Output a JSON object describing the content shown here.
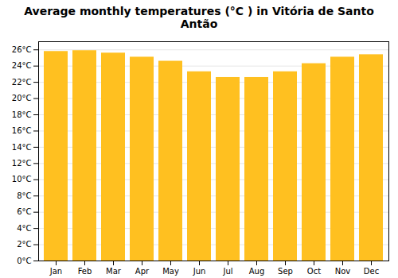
{
  "chart_data": {
    "type": "bar",
    "title": "Average monthly temperatures (°C ) in Vitória de Santo Antão",
    "categories": [
      "Jan",
      "Feb",
      "Mar",
      "Apr",
      "May",
      "Jun",
      "Jul",
      "Aug",
      "Sep",
      "Oct",
      "Nov",
      "Dec"
    ],
    "values": [
      25.8,
      25.9,
      25.6,
      25.1,
      24.6,
      23.3,
      22.6,
      22.6,
      23.3,
      24.3,
      25.1,
      25.4
    ],
    "color": "#FFC020",
    "ylim": [
      0,
      27
    ],
    "yticks": [
      {
        "value": 0,
        "label": "0°C"
      },
      {
        "value": 2,
        "label": "2°C"
      },
      {
        "value": 4,
        "label": "4°C"
      },
      {
        "value": 6,
        "label": "6°C"
      },
      {
        "value": 8,
        "label": "8°C"
      },
      {
        "value": 10,
        "label": "10°C"
      },
      {
        "value": 12,
        "label": "12°C"
      },
      {
        "value": 14,
        "label": "14°C"
      },
      {
        "value": 16,
        "label": "16°C"
      },
      {
        "value": 18,
        "label": "18°C"
      },
      {
        "value": 20,
        "label": "20°C"
      },
      {
        "value": 22,
        "label": "22°C"
      },
      {
        "value": 24,
        "label": "24°C"
      },
      {
        "value": 26,
        "label": "26°C"
      }
    ],
    "grid": true
  }
}
